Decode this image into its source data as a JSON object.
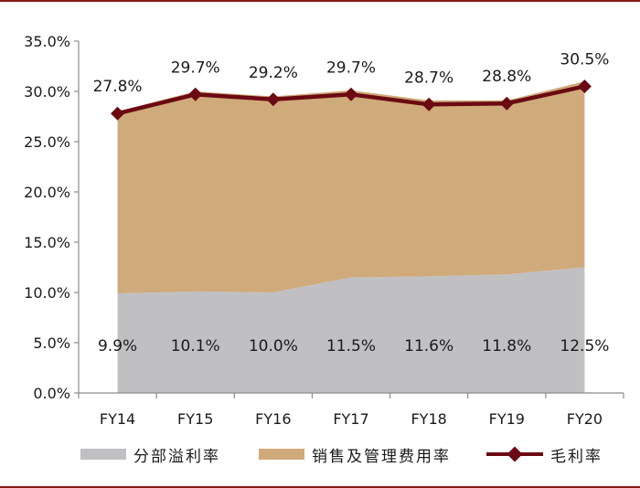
{
  "colors": {
    "segment_profit": "#c0c0c3",
    "sga": "#cfaa7a",
    "gross_margin": "#6b0a12",
    "axis": "#8c8c8c",
    "rule": "#8b1a1a"
  },
  "legend": {
    "segment_profit_label": "分部溢利率",
    "sga_label": "销售及管理费用率",
    "gross_margin_label": "毛利率"
  },
  "chart_data": {
    "type": "area",
    "title": "",
    "xlabel": "",
    "ylabel": "",
    "categories": [
      "FY14",
      "FY15",
      "FY16",
      "FY17",
      "FY18",
      "FY19",
      "FY20"
    ],
    "ylim": [
      0,
      35
    ],
    "yticks": [
      "0.0%",
      "5.0%",
      "10.0%",
      "15.0%",
      "20.0%",
      "25.0%",
      "30.0%",
      "35.0%"
    ],
    "grid": false,
    "legend_position": "bottom",
    "series": [
      {
        "name": "分部溢利率",
        "kind": "stacked-area",
        "values": [
          9.9,
          10.1,
          10.0,
          11.5,
          11.6,
          11.8,
          12.5
        ],
        "labels": [
          "9.9%",
          "10.1%",
          "10.0%",
          "11.5%",
          "11.6%",
          "11.8%",
          "12.5%"
        ]
      },
      {
        "name": "销售及管理费用率",
        "kind": "stacked-area",
        "values": [
          18.1,
          19.9,
          19.5,
          18.6,
          17.5,
          17.3,
          18.5
        ]
      },
      {
        "name": "毛利率",
        "kind": "line-with-markers",
        "values": [
          27.8,
          29.7,
          29.2,
          29.7,
          28.7,
          28.8,
          30.5
        ],
        "labels": [
          "27.8%",
          "29.7%",
          "29.2%",
          "29.7%",
          "28.7%",
          "28.8%",
          "30.5%"
        ]
      }
    ]
  }
}
